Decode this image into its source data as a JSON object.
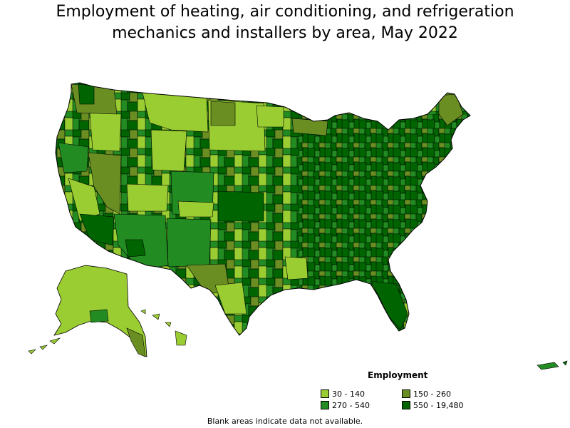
{
  "title": {
    "line1": "Employment of heating, air conditioning, and refrigeration",
    "line2": "mechanics and installers by area, May 2022"
  },
  "legend": {
    "title": "Employment",
    "items": [
      {
        "label": "30 - 140",
        "color": "#9acd32"
      },
      {
        "label": "150 - 260",
        "color": "#6b8e23"
      },
      {
        "label": "270 - 540",
        "color": "#228b22"
      },
      {
        "label": "550 - 19,480",
        "color": "#006400"
      }
    ]
  },
  "footnote": "Blank areas indicate data not available.",
  "map": {
    "regions": [
      "contiguous-us",
      "alaska",
      "hawaii",
      "puerto-rico"
    ],
    "border_color": "#000000"
  }
}
